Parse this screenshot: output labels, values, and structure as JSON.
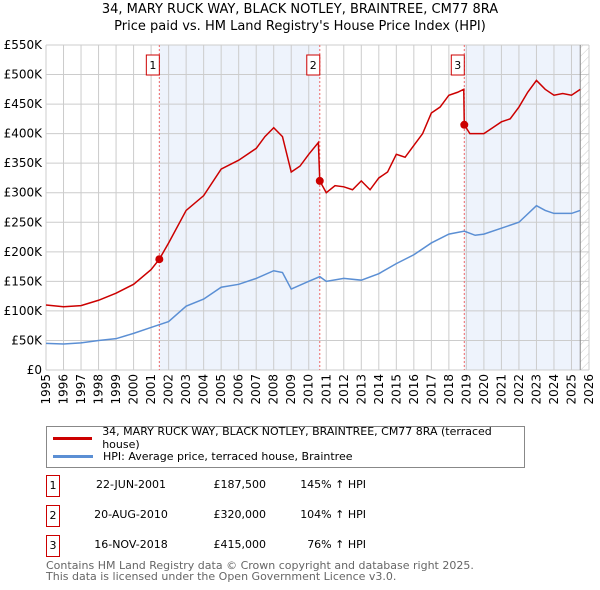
{
  "chart_data": {
    "type": "line",
    "title": "34, MARY RUCK WAY, BLACK NOTLEY, BRAINTREE, CM77 8RA",
    "subtitle": "Price paid vs. HM Land Registry's House Price Index (HPI)",
    "xlim": [
      1995,
      2026
    ],
    "ylim": [
      0,
      550000
    ],
    "x_ticks": [
      "1995",
      "1996",
      "1997",
      "1998",
      "1999",
      "2000",
      "2001",
      "2002",
      "2003",
      "2004",
      "2005",
      "2006",
      "2007",
      "2008",
      "2009",
      "2010",
      "2011",
      "2012",
      "2013",
      "2014",
      "2015",
      "2016",
      "2017",
      "2018",
      "2019",
      "2020",
      "2021",
      "2022",
      "2023",
      "2024",
      "2025",
      "2026"
    ],
    "y_ticks": [
      "£0",
      "£50K",
      "£100K",
      "£150K",
      "£200K",
      "£250K",
      "£300K",
      "£350K",
      "£400K",
      "£450K",
      "£500K",
      "£550K"
    ],
    "series": [
      {
        "name": "34, MARY RUCK WAY, BLACK NOTLEY, BRAINTREE, CM77 8RA (terraced house)",
        "color": "#cc0000",
        "points": [
          [
            1995,
            110
          ],
          [
            1996,
            107
          ],
          [
            1997,
            109
          ],
          [
            1998,
            118
          ],
          [
            1999,
            130
          ],
          [
            2000,
            145
          ],
          [
            2001,
            170
          ],
          [
            2001.47,
            187.5
          ],
          [
            2002,
            215
          ],
          [
            2003,
            270
          ],
          [
            2004,
            295
          ],
          [
            2005,
            340
          ],
          [
            2006,
            355
          ],
          [
            2007,
            375
          ],
          [
            2007.5,
            395
          ],
          [
            2008,
            410
          ],
          [
            2008.5,
            395
          ],
          [
            2009,
            335
          ],
          [
            2009.5,
            345
          ],
          [
            2010,
            365
          ],
          [
            2010.55,
            385
          ],
          [
            2010.63,
            320
          ],
          [
            2011,
            300
          ],
          [
            2011.5,
            312
          ],
          [
            2012,
            310
          ],
          [
            2012.5,
            305
          ],
          [
            2013,
            320
          ],
          [
            2013.5,
            305
          ],
          [
            2014,
            325
          ],
          [
            2014.5,
            335
          ],
          [
            2015,
            365
          ],
          [
            2015.5,
            360
          ],
          [
            2016,
            380
          ],
          [
            2016.5,
            400
          ],
          [
            2017,
            435
          ],
          [
            2017.5,
            445
          ],
          [
            2018,
            465
          ],
          [
            2018.5,
            470
          ],
          [
            2018.85,
            475
          ],
          [
            2018.88,
            415
          ],
          [
            2019.2,
            400
          ],
          [
            2020,
            400
          ],
          [
            2020.5,
            410
          ],
          [
            2021,
            420
          ],
          [
            2021.5,
            425
          ],
          [
            2022,
            445
          ],
          [
            2022.5,
            470
          ],
          [
            2023,
            490
          ],
          [
            2023.5,
            475
          ],
          [
            2024,
            465
          ],
          [
            2024.5,
            468
          ],
          [
            2025,
            465
          ],
          [
            2025.5,
            475
          ]
        ]
      },
      {
        "name": "HPI: Average price, terraced house, Braintree",
        "color": "#5b8fd4",
        "points": [
          [
            1995,
            45
          ],
          [
            1996,
            44
          ],
          [
            1997,
            46
          ],
          [
            1998,
            50
          ],
          [
            1999,
            53
          ],
          [
            2000,
            62
          ],
          [
            2001,
            72
          ],
          [
            2002,
            82
          ],
          [
            2003,
            108
          ],
          [
            2004,
            120
          ],
          [
            2005,
            140
          ],
          [
            2006,
            145
          ],
          [
            2007,
            155
          ],
          [
            2008,
            168
          ],
          [
            2008.5,
            165
          ],
          [
            2009,
            137
          ],
          [
            2010,
            150
          ],
          [
            2010.63,
            158
          ],
          [
            2011,
            150
          ],
          [
            2012,
            155
          ],
          [
            2013,
            152
          ],
          [
            2014,
            163
          ],
          [
            2015,
            180
          ],
          [
            2016,
            195
          ],
          [
            2017,
            215
          ],
          [
            2018,
            230
          ],
          [
            2018.88,
            235
          ],
          [
            2019.5,
            228
          ],
          [
            2020,
            230
          ],
          [
            2021,
            240
          ],
          [
            2022,
            250
          ],
          [
            2023,
            278
          ],
          [
            2023.5,
            270
          ],
          [
            2024,
            265
          ],
          [
            2025,
            265
          ],
          [
            2025.5,
            270
          ]
        ]
      }
    ],
    "sales": [
      {
        "n": "1",
        "x": 2001.47,
        "y": 187.5
      },
      {
        "n": "2",
        "x": 2010.63,
        "y": 320
      },
      {
        "n": "3",
        "x": 2018.88,
        "y": 415
      }
    ],
    "shaded": [
      [
        2001.47,
        2010.63
      ],
      [
        2018.88,
        2025.5
      ]
    ],
    "hatch_from": 2025.5
  },
  "table": [
    {
      "n": "1",
      "date": "22-JUN-2001",
      "price": "£187,500",
      "hpi": "145% ↑ HPI"
    },
    {
      "n": "2",
      "date": "20-AUG-2010",
      "price": "£320,000",
      "hpi": "104% ↑ HPI"
    },
    {
      "n": "3",
      "date": "16-NOV-2018",
      "price": "£415,000",
      "hpi": "76% ↑ HPI"
    }
  ],
  "footer": [
    "Contains HM Land Registry data © Crown copyright and database right 2025.",
    "This data is licensed under the Open Government Licence v3.0."
  ]
}
